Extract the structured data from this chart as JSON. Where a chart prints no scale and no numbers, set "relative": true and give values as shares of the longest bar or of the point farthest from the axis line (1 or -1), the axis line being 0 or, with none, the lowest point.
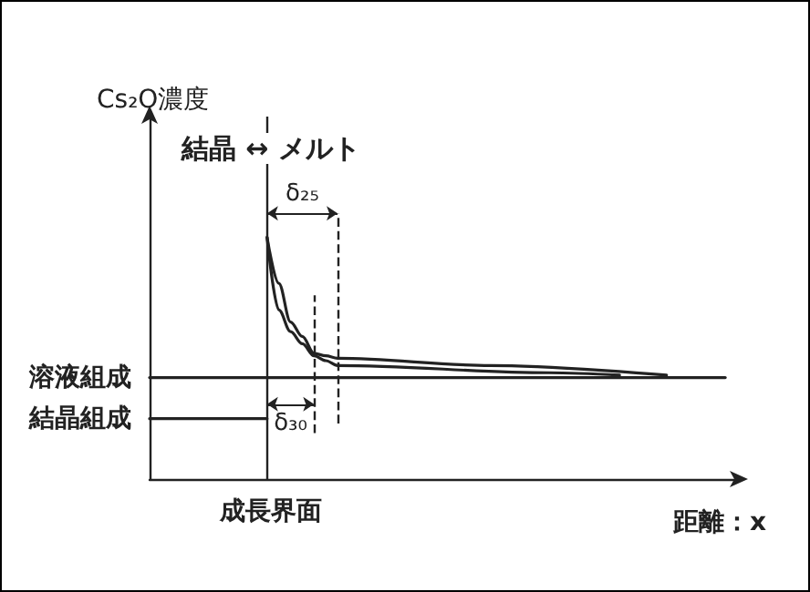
{
  "chart_data": {
    "type": "line",
    "relative": true,
    "ylabel": "Cs₂O濃度",
    "xlabel": "距離：x",
    "annotations": [
      "結晶 ↔ メルト",
      "成長界面",
      "δ₂₅",
      "δ₃₀"
    ],
    "categories": [
      null,
      null,
      null,
      null,
      null,
      null,
      null,
      null,
      null,
      null,
      null,
      null,
      null,
      null,
      null,
      null,
      null,
      null,
      null,
      null,
      null,
      null,
      null,
      null,
      null,
      null,
      null,
      null,
      null,
      null,
      null,
      null,
      null,
      null,
      null,
      null,
      null,
      null,
      null,
      null,
      null,
      null,
      null,
      null,
      null,
      null,
      null,
      null,
      null,
      null,
      null
    ],
    "series": [
      {
        "name": "溶液組成",
        "color": "#222222",
        "values": [
          0.42,
          null,
          null,
          null,
          null,
          null,
          null,
          null,
          null,
          null,
          null,
          null,
          null,
          null,
          null,
          null,
          null,
          null,
          null,
          null,
          null,
          null,
          null,
          null,
          null,
          null,
          null,
          null,
          null,
          null,
          null,
          null,
          null,
          null,
          null,
          null,
          null,
          null,
          null,
          null,
          null,
          null,
          null,
          null,
          null,
          null,
          null,
          null,
          null,
          0.42,
          null
        ]
      },
      {
        "name": "結晶組成",
        "color": "#222222",
        "values": [
          0.25,
          null,
          null,
          null,
          null,
          null,
          null,
          null,
          null,
          null,
          0.25,
          null,
          null,
          null,
          null,
          null,
          null,
          null,
          null,
          null,
          null,
          null,
          null,
          null,
          null,
          null,
          null,
          null,
          null,
          null,
          null,
          null,
          null,
          null,
          null,
          null,
          null,
          null,
          null,
          null,
          null,
          null,
          null,
          null,
          null,
          null,
          null,
          null,
          null,
          null,
          null
        ]
      },
      {
        "color": "#222222",
        "values": [
          null,
          null,
          null,
          null,
          null,
          null,
          null,
          null,
          null,
          null,
          1.0,
          0.81,
          0.65,
          0.59,
          0.52,
          0.51,
          0.5,
          null,
          null,
          null,
          null,
          null,
          null,
          null,
          null,
          null,
          null,
          null,
          null,
          0.47,
          null,
          null,
          null,
          null,
          null,
          null,
          null,
          null,
          null,
          null,
          null,
          null,
          null,
          null,
          0.43,
          null,
          null,
          null,
          null,
          null,
          null
        ]
      },
      {
        "color": "#222222",
        "values": [
          null,
          null,
          null,
          null,
          null,
          null,
          null,
          null,
          null,
          null,
          1.0,
          0.7,
          0.61,
          0.56,
          0.51,
          0.49,
          0.47,
          null,
          null,
          null,
          null,
          null,
          null,
          null,
          null,
          null,
          null,
          null,
          null,
          null,
          null,
          null,
          null,
          null,
          0.44,
          null,
          null,
          null,
          null,
          null,
          0.43,
          null,
          null,
          null,
          null,
          null,
          null,
          null,
          null,
          null,
          null
        ]
      }
    ],
    "grid": false,
    "legend": false
  }
}
